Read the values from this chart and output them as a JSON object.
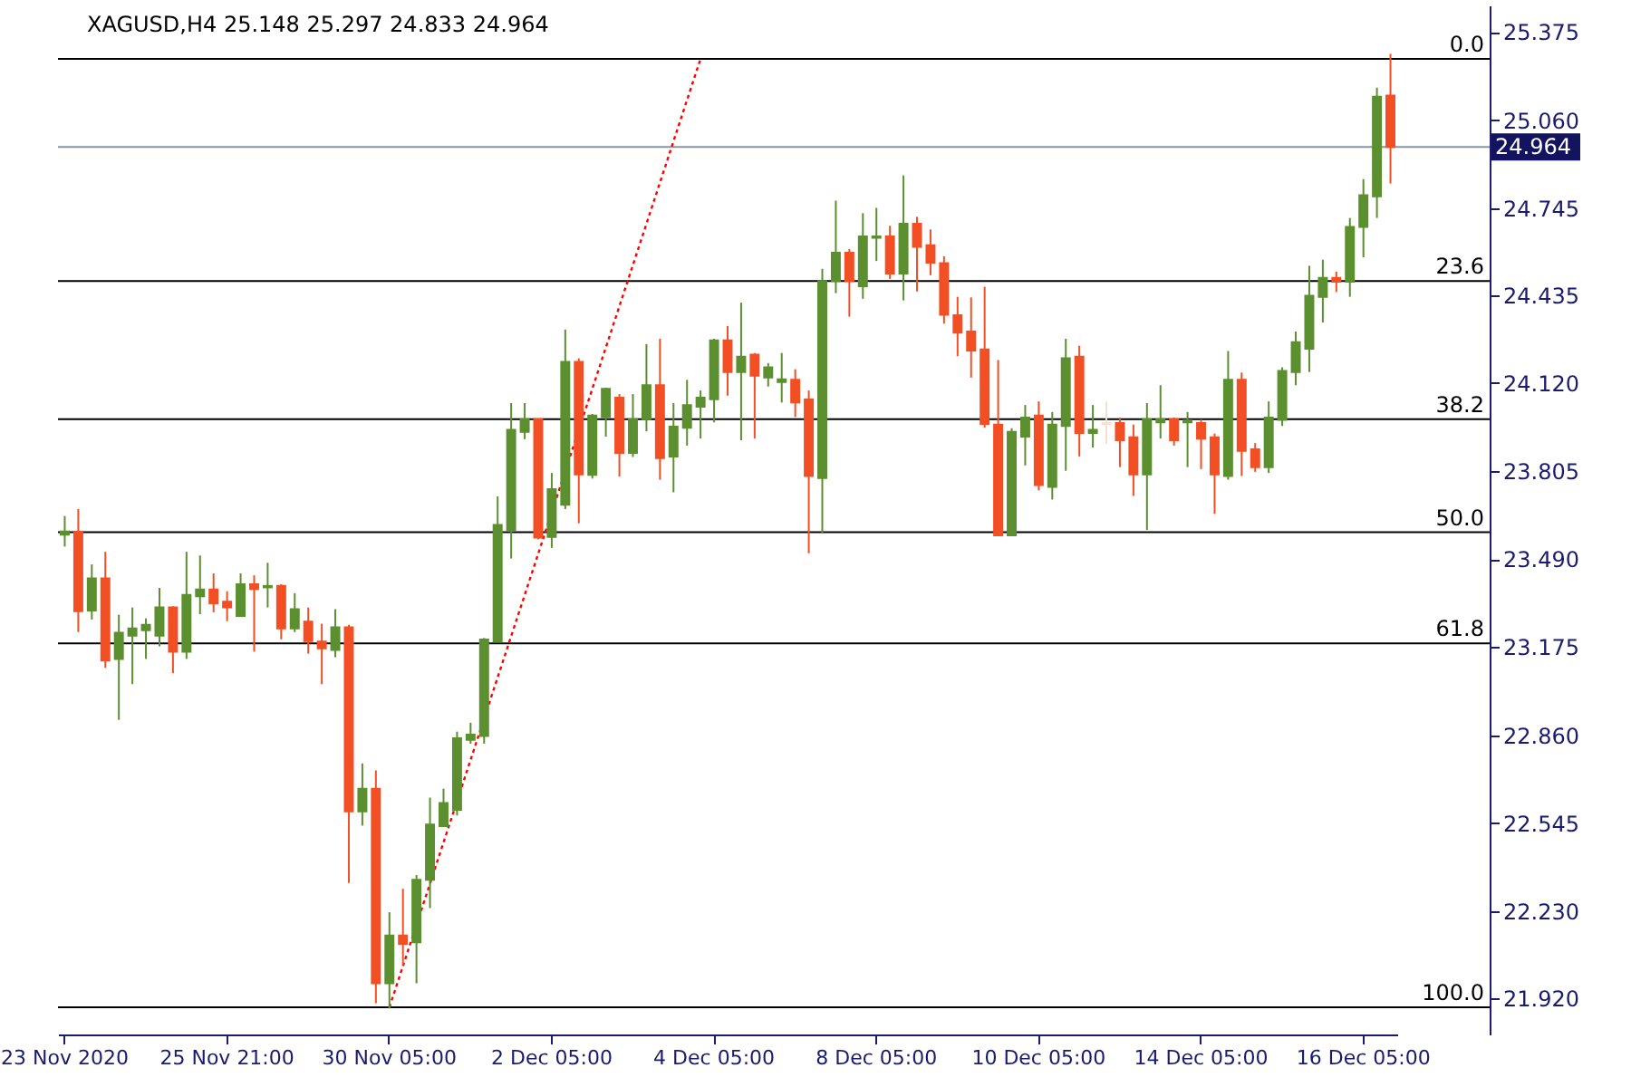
{
  "chart_data": {
    "type": "candlestick",
    "title": "XAGUSD,H4  25.148 25.297 24.833 24.964",
    "categories": [
      "23 Nov 2020",
      null,
      null,
      null,
      null,
      null,
      null,
      null,
      null,
      null,
      null,
      null,
      "25 Nov 21:00",
      null,
      null,
      null,
      null,
      null,
      null,
      null,
      null,
      null,
      null,
      null,
      "30 Nov 05:00",
      null,
      null,
      null,
      null,
      null,
      null,
      null,
      null,
      null,
      null,
      null,
      "2 Dec 05:00",
      null,
      null,
      null,
      null,
      null,
      null,
      null,
      null,
      null,
      null,
      null,
      "4 Dec 05:00",
      null,
      null,
      null,
      null,
      null,
      null,
      null,
      null,
      null,
      null,
      null,
      "8 Dec 05:00",
      null,
      null,
      null,
      null,
      null,
      null,
      null,
      null,
      null,
      null,
      null,
      "10 Dec 05:00",
      null,
      null,
      null,
      null,
      null,
      null,
      null,
      null,
      null,
      null,
      null,
      "14 Dec 05:00",
      null,
      null,
      null,
      null,
      null,
      null,
      null,
      null,
      null,
      null,
      null,
      "16 Dec 05:00",
      null,
      null
    ],
    "ohlc": [
      [
        23.577,
        23.644,
        23.535,
        23.589
      ],
      [
        23.588,
        23.669,
        23.229,
        23.304
      ],
      [
        23.306,
        23.471,
        23.274,
        23.421
      ],
      [
        23.421,
        23.516,
        23.101,
        23.127
      ],
      [
        23.133,
        23.291,
        22.915,
        23.227
      ],
      [
        23.216,
        23.317,
        23.043,
        23.242
      ],
      [
        23.236,
        23.278,
        23.133,
        23.255
      ],
      [
        23.216,
        23.387,
        23.178,
        23.317
      ],
      [
        23.317,
        23.321,
        23.082,
        23.159
      ],
      [
        23.159,
        23.516,
        23.133,
        23.362
      ],
      [
        23.357,
        23.503,
        23.293,
        23.381
      ],
      [
        23.381,
        23.439,
        23.3,
        23.332
      ],
      [
        23.338,
        23.375,
        23.268,
        23.317
      ],
      [
        23.287,
        23.439,
        23.287,
        23.4
      ],
      [
        23.4,
        23.432,
        23.159,
        23.383
      ],
      [
        23.389,
        23.477,
        23.317,
        23.394
      ],
      [
        23.394,
        23.4,
        23.203,
        23.242
      ],
      [
        23.242,
        23.368,
        23.229,
        23.311
      ],
      [
        23.266,
        23.317,
        23.152,
        23.197
      ],
      [
        23.195,
        23.259,
        23.043,
        23.171
      ],
      [
        23.165,
        23.311,
        23.139,
        23.246
      ],
      [
        23.246,
        23.255,
        22.332,
        22.588
      ],
      [
        22.588,
        22.759,
        22.537,
        22.669
      ],
      [
        22.669,
        22.734,
        21.902,
        21.973
      ],
      [
        21.973,
        22.227,
        21.883,
        22.144
      ],
      [
        22.144,
        22.311,
        22.039,
        22.114
      ],
      [
        22.12,
        22.36,
        21.973,
        22.343
      ],
      [
        22.343,
        22.637,
        22.242,
        22.541
      ],
      [
        22.535,
        22.669,
        22.535,
        22.618
      ],
      [
        22.593,
        22.873,
        22.573,
        22.849
      ],
      [
        22.844,
        22.905,
        22.83,
        22.862
      ],
      [
        22.857,
        23.208,
        22.83,
        23.202
      ],
      [
        23.195,
        23.714,
        23.195,
        23.612
      ],
      [
        23.593,
        24.048,
        23.492,
        23.952
      ],
      [
        23.945,
        24.048,
        23.919,
        23.99
      ],
      [
        23.99,
        23.99,
        23.561,
        23.567
      ],
      [
        23.569,
        23.798,
        23.53,
        23.74
      ],
      [
        23.684,
        24.311,
        23.669,
        24.195
      ],
      [
        24.195,
        24.208,
        23.618,
        23.793
      ],
      [
        23.791,
        24.009,
        23.778,
        24.003
      ],
      [
        23.998,
        24.103,
        23.928,
        24.099
      ],
      [
        24.067,
        24.08,
        23.785,
        23.87
      ],
      [
        23.87,
        24.08,
        23.855,
        23.99
      ],
      [
        23.99,
        24.259,
        23.947,
        24.112
      ],
      [
        24.112,
        24.278,
        23.774,
        23.851
      ],
      [
        23.857,
        24.048,
        23.729,
        23.964
      ],
      [
        23.96,
        24.131,
        23.896,
        24.041
      ],
      [
        24.035,
        24.093,
        23.921,
        24.067
      ],
      [
        24.062,
        24.278,
        23.979,
        24.272
      ],
      [
        24.272,
        24.323,
        24.075,
        24.159
      ],
      [
        24.159,
        24.407,
        23.915,
        24.214
      ],
      [
        24.221,
        24.227,
        23.921,
        24.146
      ],
      [
        24.139,
        24.191,
        24.107,
        24.176
      ],
      [
        24.123,
        24.227,
        24.05,
        24.133
      ],
      [
        24.131,
        24.169,
        23.998,
        24.05
      ],
      [
        24.061,
        24.093,
        23.511,
        23.787
      ],
      [
        23.78,
        24.528,
        23.584,
        24.484
      ],
      [
        24.484,
        24.772,
        24.441,
        24.586
      ],
      [
        24.586,
        24.599,
        24.357,
        24.484
      ],
      [
        24.466,
        24.727,
        24.421,
        24.644
      ],
      [
        24.639,
        24.746,
        24.556,
        24.644
      ],
      [
        24.644,
        24.682,
        24.492,
        24.511
      ],
      [
        24.511,
        24.862,
        24.415,
        24.689
      ],
      [
        24.689,
        24.714,
        24.447,
        24.607
      ],
      [
        24.612,
        24.669,
        24.505,
        24.55
      ],
      [
        24.548,
        24.573,
        24.332,
        24.364
      ],
      [
        24.362,
        24.428,
        24.216,
        24.3
      ],
      [
        24.304,
        24.426,
        24.139,
        24.236
      ],
      [
        24.24,
        24.464,
        23.96,
        23.973
      ],
      [
        23.971,
        24.202,
        23.575,
        23.575
      ],
      [
        23.575,
        23.958,
        23.575,
        23.945
      ],
      [
        23.928,
        24.041,
        23.825,
        23.996
      ],
      [
        24.003,
        24.054,
        23.736,
        23.755
      ],
      [
        23.748,
        24.016,
        23.703,
        23.971
      ],
      [
        23.966,
        24.278,
        23.806,
        24.208
      ],
      [
        24.214,
        24.253,
        23.857,
        23.941
      ],
      [
        23.941,
        24.041,
        23.889,
        23.952
      ],
      [
        23.973,
        24.054,
        23.902,
        23.977
      ],
      [
        23.977,
        23.996,
        23.819,
        23.915
      ],
      [
        23.926,
        23.971,
        23.716,
        23.793
      ],
      [
        23.793,
        24.048,
        23.594,
        23.99
      ],
      [
        23.979,
        24.112,
        23.921,
        23.99
      ],
      [
        23.99,
        23.996,
        23.896,
        23.915
      ],
      [
        23.979,
        24.016,
        23.819,
        23.986
      ],
      [
        23.977,
        23.99,
        23.812,
        23.921
      ],
      [
        23.926,
        23.939,
        23.652,
        23.793
      ],
      [
        23.787,
        24.234,
        23.774,
        24.131
      ],
      [
        24.131,
        24.157,
        23.787,
        23.877
      ],
      [
        23.883,
        23.905,
        23.802,
        23.819
      ],
      [
        23.819,
        24.054,
        23.798,
        23.996
      ],
      [
        23.988,
        24.176,
        23.966,
        24.163
      ],
      [
        24.159,
        24.304,
        24.112,
        24.266
      ],
      [
        24.242,
        24.539,
        24.159,
        24.432
      ],
      [
        24.428,
        24.561,
        24.336,
        24.496
      ],
      [
        24.496,
        24.518,
        24.445,
        24.482
      ],
      [
        24.482,
        24.71,
        24.428,
        24.678
      ],
      [
        24.678,
        24.849,
        24.569,
        24.791
      ],
      [
        24.787,
        25.176,
        24.71,
        25.144
      ],
      [
        25.148,
        25.297,
        24.833,
        24.964
      ]
    ],
    "colors": [
      "#5b8f2f",
      "#f24f25",
      "#5b8f2f",
      "#f24f25",
      "#5b8f2f",
      "#5b8f2f",
      "#5b8f2f",
      "#5b8f2f",
      "#f24f25",
      "#5b8f2f",
      "#5b8f2f",
      "#f24f25",
      "#f24f25",
      "#5b8f2f",
      "#f24f25",
      "#5b8f2f",
      "#f24f25",
      "#5b8f2f",
      "#f24f25",
      "#f24f25",
      "#5b8f2f",
      "#f24f25",
      "#5b8f2f",
      "#f24f25",
      "#5b8f2f",
      "#f24f25",
      "#5b8f2f",
      "#5b8f2f",
      "#5b8f2f",
      "#5b8f2f",
      "#5b8f2f",
      "#5b8f2f",
      "#5b8f2f",
      "#5b8f2f",
      "#5b8f2f",
      "#f24f25",
      "#5b8f2f",
      "#5b8f2f",
      "#f24f25",
      "#5b8f2f",
      "#5b8f2f",
      "#f24f25",
      "#5b8f2f",
      "#5b8f2f",
      "#f24f25",
      "#5b8f2f",
      "#5b8f2f",
      "#5b8f2f",
      "#5b8f2f",
      "#f24f25",
      "#5b8f2f",
      "#f24f25",
      "#5b8f2f",
      "#5b8f2f",
      "#f24f25",
      "#f24f25",
      "#5b8f2f",
      "#5b8f2f",
      "#f24f25",
      "#5b8f2f",
      "#5b8f2f",
      "#f24f25",
      "#5b8f2f",
      "#f24f25",
      "#f24f25",
      "#f24f25",
      "#f24f25",
      "#f24f25",
      "#f24f25",
      "#f24f25",
      "#5b8f2f",
      "#5b8f2f",
      "#f24f25",
      "#5b8f2f",
      "#5b8f2f",
      "#f24f25",
      "#5b8f2f",
      "#f5e1d3",
      "#f24f25",
      "#f24f25",
      "#5b8f2f",
      "#5b8f2f",
      "#f24f25",
      "#5b8f2f",
      "#f24f25",
      "#f24f25",
      "#5b8f2f",
      "#f24f25",
      "#f24f25",
      "#5b8f2f",
      "#5b8f2f",
      "#5b8f2f",
      "#5b8f2f",
      "#5b8f2f",
      "#f24f25",
      "#5b8f2f",
      "#5b8f2f",
      "#5b8f2f",
      "#f24f25"
    ],
    "series": [
      {
        "type": "line",
        "color": "#ff0000",
        "line_style": "dotted",
        "values": [
          null,
          null,
          null,
          null,
          null,
          null,
          null,
          null,
          null,
          null,
          null,
          null,
          null,
          null,
          null,
          null,
          null,
          null,
          null,
          null,
          null,
          null,
          null,
          null,
          21.887,
          null,
          null,
          null,
          null,
          null,
          null,
          null,
          null,
          null,
          null,
          null,
          null,
          null,
          null,
          null,
          null,
          null,
          null,
          null,
          null,
          null,
          null,
          25.279,
          null,
          null,
          null,
          null,
          null,
          null,
          null,
          null,
          null,
          null,
          null,
          null,
          null,
          null,
          null,
          null,
          null,
          null,
          null,
          null,
          null,
          null,
          null,
          null,
          null,
          null,
          null,
          null,
          null,
          null,
          null,
          null,
          null,
          null,
          null,
          null,
          null,
          null,
          null,
          null,
          null,
          null,
          null,
          null,
          null,
          null,
          null,
          null,
          null,
          null,
          null
        ]
      }
    ],
    "ylim": [
      21.79,
      25.47
    ],
    "yticks": [
      {
        "value": 21.92,
        "label": "21.920"
      },
      {
        "value": 22.23,
        "label": "22.230"
      },
      {
        "value": 22.545,
        "label": "22.545"
      },
      {
        "value": 22.86,
        "label": "22.860"
      },
      {
        "value": 23.175,
        "label": "23.175"
      },
      {
        "value": 23.49,
        "label": "23.490"
      },
      {
        "value": 23.805,
        "label": "23.805"
      },
      {
        "value": 24.12,
        "label": "24.120"
      },
      {
        "value": 24.435,
        "label": "24.435"
      },
      {
        "value": 24.745,
        "label": "24.745"
      },
      {
        "value": 25.06,
        "label": "25.060"
      },
      {
        "value": 25.375,
        "label": "25.375"
      }
    ],
    "ref_lines": [
      {
        "axis": "y",
        "value": 25.279,
        "color": "#000000"
      },
      {
        "axis": "y",
        "value": 24.484,
        "color": "#000000"
      },
      {
        "axis": "y",
        "value": 23.99,
        "color": "#000000"
      },
      {
        "axis": "y",
        "value": 23.586,
        "color": "#000000"
      },
      {
        "axis": "y",
        "value": 23.189,
        "color": "#000000"
      },
      {
        "axis": "y",
        "value": 21.887,
        "color": "#000000"
      },
      {
        "axis": "y",
        "value": 24.964,
        "label": "24.964",
        "color": "#8496a8"
      }
    ],
    "annotations": [
      {
        "text": "0.0",
        "y": 25.279
      },
      {
        "text": "23.6",
        "y": 24.484
      },
      {
        "text": "38.2",
        "y": 23.99
      },
      {
        "text": "50.0",
        "y": 23.586
      },
      {
        "text": "61.8",
        "y": 23.189
      },
      {
        "text": "100.0",
        "y": 21.887
      }
    ]
  }
}
